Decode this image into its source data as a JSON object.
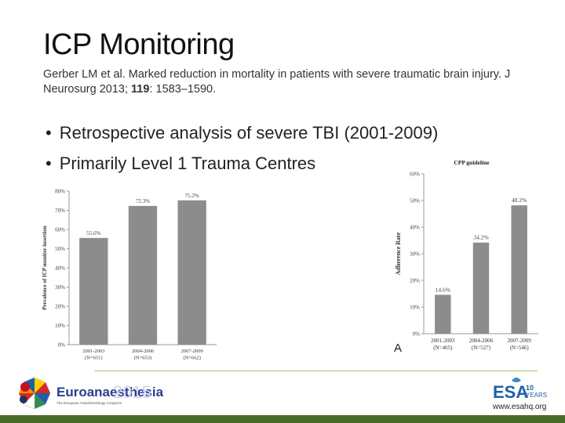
{
  "slide": {
    "title": "ICP Monitoring",
    "citation_before": "Gerber LM et al. Marked reduction in mortality in patients with severe traumatic brain injury. J Neurosurg 2013;",
    "citation_volume": "119",
    "citation_after": ": 1583–1590.",
    "bullets": [
      "Retrospective analysis of severe TBI (2001-2009)",
      "Primarily Level 1 Trauma Centres"
    ],
    "panel_letter": "A"
  },
  "footer": {
    "logo_name": "Euroanaesthesia",
    "logo_year": "2015",
    "logo_tagline": "The European Anaesthesiology Congress",
    "esa_text": "ESA",
    "esa_years_number": "10",
    "esa_years_label": "YEARS",
    "url": "www.esahq.org"
  },
  "chart_data": [
    {
      "type": "bar",
      "title": "",
      "ylabel": "Prevalence of ICP monitor insertion",
      "xlabel": "",
      "categories": [
        "2001-2003",
        "2004-2006",
        "2007-2009"
      ],
      "category_notes": [
        "(N=651)",
        "(N=653)",
        "(N=662)"
      ],
      "values": [
        55.6,
        72.3,
        75.2
      ],
      "data_labels": [
        "55.6%",
        "72.3%",
        "75.2%"
      ],
      "ylim": [
        0,
        80
      ],
      "yticks": [
        "0%",
        "10%",
        "20%",
        "30%",
        "40%",
        "50%",
        "60%",
        "70%",
        "80%"
      ],
      "grid": false,
      "bar_color": "#8c8c8c"
    },
    {
      "type": "bar",
      "title": "CPP guideline",
      "ylabel": "Adherence Rate",
      "xlabel": "",
      "categories": [
        "2001-2003",
        "2004-2006",
        "2007-2009"
      ],
      "category_notes": [
        "(N=465)",
        "(N=527)",
        "(N=546)"
      ],
      "values": [
        14.6,
        34.2,
        48.2
      ],
      "data_labels": [
        "14.6%",
        "34.2%",
        "48.2%"
      ],
      "ylim": [
        0,
        60
      ],
      "yticks": [
        "0%",
        "10%",
        "20%",
        "30%",
        "40%",
        "50%",
        "60%"
      ],
      "grid": false,
      "bar_color": "#8c8c8c"
    }
  ]
}
